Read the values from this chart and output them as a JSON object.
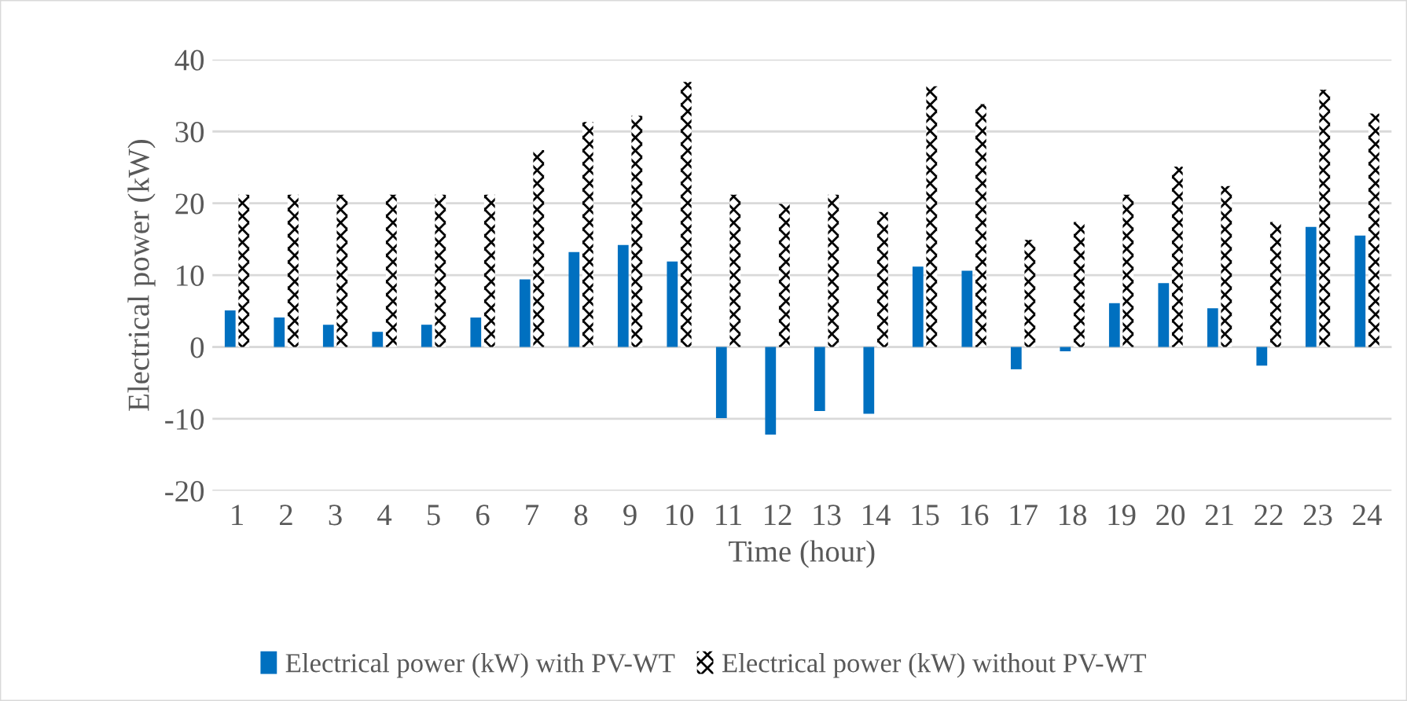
{
  "chart_data": {
    "type": "bar",
    "xlabel": "Time (hour)",
    "ylabel": "Electrical power (kW)",
    "categories": [
      "1",
      "2",
      "3",
      "4",
      "5",
      "6",
      "7",
      "8",
      "9",
      "10",
      "11",
      "12",
      "13",
      "14",
      "15",
      "16",
      "17",
      "18",
      "19",
      "20",
      "21",
      "22",
      "23",
      "24"
    ],
    "series": [
      {
        "name": "Electrical power (kW) with PV-WT",
        "color": "#0070c0",
        "values": [
          5.1,
          4.1,
          3.1,
          2.1,
          3.1,
          4.1,
          9.4,
          13.2,
          14.2,
          11.9,
          -9.9,
          -12.2,
          -8.9,
          -9.3,
          11.2,
          10.6,
          -3.1,
          -0.6,
          6.1,
          8.9,
          5.4,
          -2.6,
          16.7,
          15.5
        ]
      },
      {
        "name": "Electrical power (kW) without PV-WT",
        "color": "#000000",
        "values": [
          21.2,
          21.2,
          21.2,
          21.2,
          21.2,
          21.2,
          27.4,
          31.3,
          32.2,
          36.9,
          21.2,
          19.9,
          21.2,
          18.8,
          36.3,
          33.8,
          14.9,
          17.4,
          21.2,
          25.1,
          22.4,
          17.4,
          35.8,
          32.5
        ]
      }
    ],
    "ylim": [
      -20,
      40
    ],
    "yticks": [
      -20,
      -10,
      0,
      10,
      20,
      30,
      40
    ],
    "grid": "y",
    "legend": "bottom"
  }
}
